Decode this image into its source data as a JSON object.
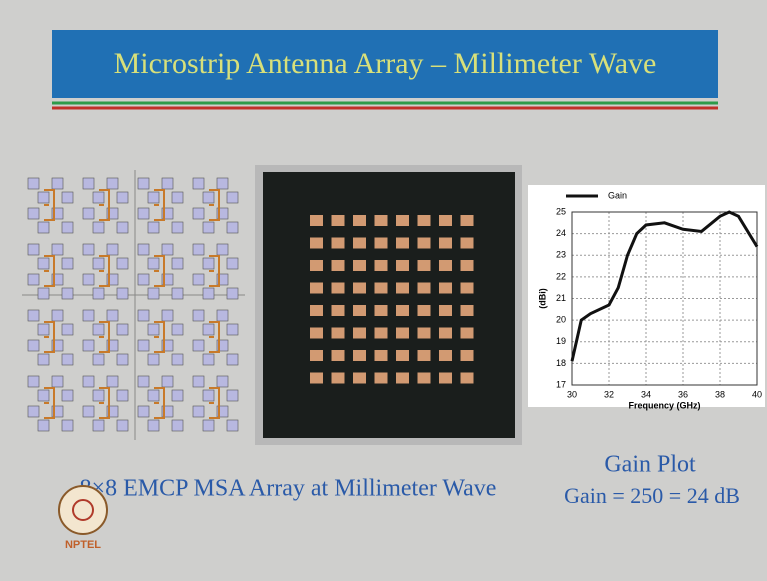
{
  "slide": {
    "title": "Microstrip Antenna Array – Millimeter Wave",
    "caption": "8×8 EMCP MSA Array at Millimeter Wave",
    "plot_title": "Gain Plot",
    "plot_note": "Gain = 250 = 24 dB",
    "logo": "NPTEL"
  },
  "chart_data": {
    "type": "line",
    "x_label": "Frequency (GHz)",
    "y_label": "(dBi)",
    "xlim": [
      30,
      40
    ],
    "xticks": [
      30,
      32,
      34,
      36,
      38,
      40
    ],
    "ylim": [
      17,
      25
    ],
    "yticks": [
      17,
      18,
      19,
      20,
      21,
      22,
      23,
      24,
      25
    ],
    "grid": true,
    "series": [
      {
        "name": "Gain",
        "color": "#111111",
        "x": [
          30,
          30.5,
          31,
          32,
          32.5,
          33,
          33.5,
          34,
          35,
          36,
          37,
          38,
          38.5,
          39,
          40
        ],
        "values": [
          18.1,
          20,
          20.3,
          20.7,
          21.5,
          23,
          24,
          24.4,
          24.5,
          24.2,
          24.1,
          24.8,
          25,
          24.8,
          23.4
        ]
      }
    ]
  }
}
